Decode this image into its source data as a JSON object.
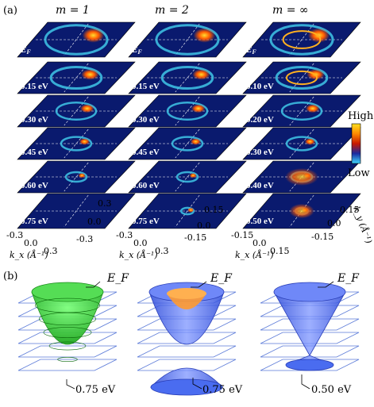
{
  "panel_a": {
    "label": "(a)",
    "columns": [
      {
        "header": "m = 1",
        "energies": [
          "E_F",
          "0.15 eV",
          "0.30 eV",
          "0.45 eV",
          "0.60 eV",
          "0.75 eV"
        ]
      },
      {
        "header": "m = 2",
        "energies": [
          "E_F",
          "0.15 eV",
          "0.30 eV",
          "0.45 eV",
          "0.60 eV",
          "0.75 eV"
        ]
      },
      {
        "header": "m = ∞",
        "energies": [
          "E_F",
          "0.10 eV",
          "0.20 eV",
          "0.30 eV",
          "0.40 eV",
          "0.50 eV"
        ]
      }
    ],
    "colorbar": {
      "high": "High",
      "low": "Low"
    },
    "kx_ticks": [
      "-0.3",
      "0.0",
      "0.3"
    ],
    "ky_ticks_col1": [
      "0.3",
      "0.0",
      "-0.3"
    ],
    "ky_ticks_col2": [
      "0.15",
      "0.0",
      "-0.15"
    ],
    "ky_ticks_col3": [
      "0.15",
      "0.0",
      "-0.15"
    ],
    "kx_ticks_col3": [
      "-0.15",
      "0.0",
      "0.15"
    ],
    "kx_label": "k_x (Å⁻¹)",
    "ky_label": "k_y (Å⁻¹)"
  },
  "panel_b": {
    "label": "(b)",
    "cones": [
      {
        "ef_label": "E_F",
        "bottom_label": "0.75 eV",
        "color": "#33cc33"
      },
      {
        "ef_label": "E_F",
        "bottom_label": "0.75 eV",
        "color": "#4a6cf0"
      },
      {
        "ef_label": "E_F",
        "bottom_label": "0.50 eV",
        "color": "#3b5cf5"
      }
    ]
  },
  "colors": {
    "map_bg": "#0a1a6e",
    "ring_cyan": "#3fc7e8",
    "ring_hot": "#ff7a00",
    "cone_green": "#33cc33",
    "cone_blue": "#4a6cf0",
    "orange": "#ff9a30"
  }
}
